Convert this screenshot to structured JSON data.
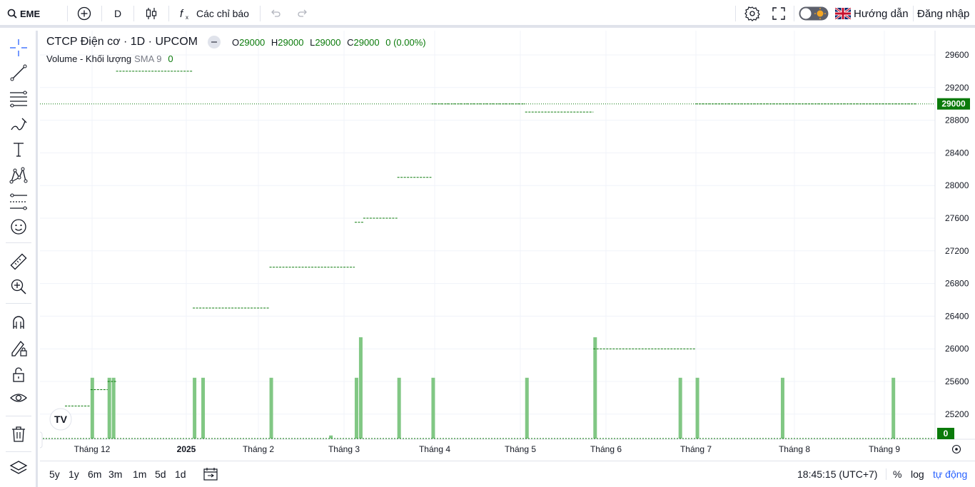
{
  "topbar": {
    "symbol": "EME",
    "interval": "D",
    "indicators_label": "Các chỉ báo",
    "guide_label": "Hướng dẫn",
    "login_label": "Đăng nhập"
  },
  "legend": {
    "title": "CTCP Điện cơ · 1D · UPCOM",
    "o_key": "O",
    "o_val": "29000",
    "h_key": "H",
    "h_val": "29000",
    "l_key": "L",
    "l_val": "29000",
    "c_key": "C",
    "c_val": "29000",
    "change": "0 (0.00%)",
    "volume_label": "Volume - Khối lượng",
    "volume_sma": "SMA 9",
    "volume_value": "0"
  },
  "bottombar": {
    "ranges": [
      "5y",
      "1y",
      "6m",
      "3m",
      "1m",
      "5d",
      "1d"
    ],
    "time": "18:45:15 (UTC+7)",
    "percent": "%",
    "log": "log",
    "auto": "tự động"
  },
  "colors": {
    "price": "#0a7a0a",
    "volume": "#81c784",
    "grid": "#f0f3fa",
    "accent": "#2962ff"
  },
  "chart_data": {
    "type": "line",
    "y_axis_ticks": [
      "29600",
      "29200",
      "28800",
      "28400",
      "28000",
      "27600",
      "27200",
      "26800",
      "26400",
      "26000",
      "25600",
      "25200"
    ],
    "y_range": [
      25000,
      29700
    ],
    "last_price_label": "29000",
    "volume_last_label": "0",
    "x_axis_labels": [
      "Tháng 12",
      "2025",
      "Tháng 2",
      "Tháng 3",
      "Tháng 4",
      "Tháng 5",
      "Tháng 6",
      "Tháng 7",
      "Tháng 8",
      "Tháng 9"
    ],
    "price_segments": [
      {
        "x0": 0,
        "x1": 3,
        "y": 25300
      },
      {
        "x0": 3,
        "x1": 5,
        "y": 25500
      },
      {
        "x0": 5,
        "x1": 6,
        "y": 25600
      },
      {
        "x0": 6,
        "x1": 15,
        "y": 29400
      },
      {
        "x0": 15,
        "x1": 24,
        "y": 26500
      },
      {
        "x0": 24,
        "x1": 34,
        "y": 27000
      },
      {
        "x0": 34,
        "x1": 35,
        "y": 27550
      },
      {
        "x0": 35,
        "x1": 39,
        "y": 27600
      },
      {
        "x0": 39,
        "x1": 43,
        "y": 28100
      },
      {
        "x0": 43,
        "x1": 54,
        "y": 29000
      },
      {
        "x0": 54,
        "x1": 62,
        "y": 28900
      },
      {
        "x0": 62,
        "x1": 74,
        "y": 26000
      },
      {
        "x0": 74,
        "x1": 100,
        "y": 29000
      }
    ],
    "volume_bars": [
      {
        "x": 3,
        "v": 0.6
      },
      {
        "x": 5,
        "v": 0.6
      },
      {
        "x": 5.5,
        "v": 0.6
      },
      {
        "x": 15,
        "v": 0.6
      },
      {
        "x": 16,
        "v": 0.6
      },
      {
        "x": 24,
        "v": 0.6
      },
      {
        "x": 31,
        "v": 0.03
      },
      {
        "x": 34,
        "v": 0.6
      },
      {
        "x": 34.5,
        "v": 1.0
      },
      {
        "x": 39,
        "v": 0.6
      },
      {
        "x": 43,
        "v": 0.6
      },
      {
        "x": 54,
        "v": 0.6
      },
      {
        "x": 62,
        "v": 1.0
      },
      {
        "x": 72,
        "v": 0.6
      },
      {
        "x": 74,
        "v": 0.6
      },
      {
        "x": 84,
        "v": 0.6
      },
      {
        "x": 97,
        "v": 0.6
      }
    ]
  }
}
